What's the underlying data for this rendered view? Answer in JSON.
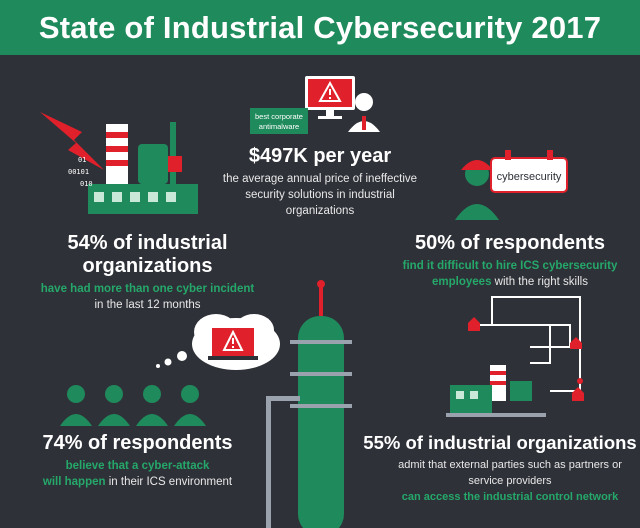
{
  "title": "State of Industrial Cybersecurity 2017",
  "colors": {
    "background": "#2e3138",
    "brand_green": "#1f8a5c",
    "accent_green": "#25a86a",
    "alert_red": "#e0202a"
  },
  "stat_price": {
    "headline": "$497K per year",
    "line1": "the average annual price of ineffective",
    "line2": "security solutions in industrial",
    "line3": "organizations",
    "sign_line1": "best corporate",
    "sign_line2": "antimalware"
  },
  "stat_incident": {
    "headline": "54% of industrial organizations",
    "line1_green": "have had more than one cyber incident",
    "line2": "in the last 12 months",
    "binary1": "01",
    "binary2": "00101",
    "binary3": "010"
  },
  "stat_hire": {
    "headline": "50% of respondents",
    "line1_green": "find it difficult to hire ICS cybersecurity",
    "line2_green": "employees",
    "line2_white": " with the right skills",
    "badge": "cybersecurity"
  },
  "stat_attack": {
    "headline": "74% of respondents",
    "line1_green": "believe that a cyber-attack",
    "line2_green": "will happen",
    "line2_white": " in their ICS environment"
  },
  "stat_access": {
    "headline": "55% of industrial organizations",
    "line1": "admit that external parties such as partners or",
    "line2": "service providers",
    "line3_green": "can access the industrial control network"
  }
}
